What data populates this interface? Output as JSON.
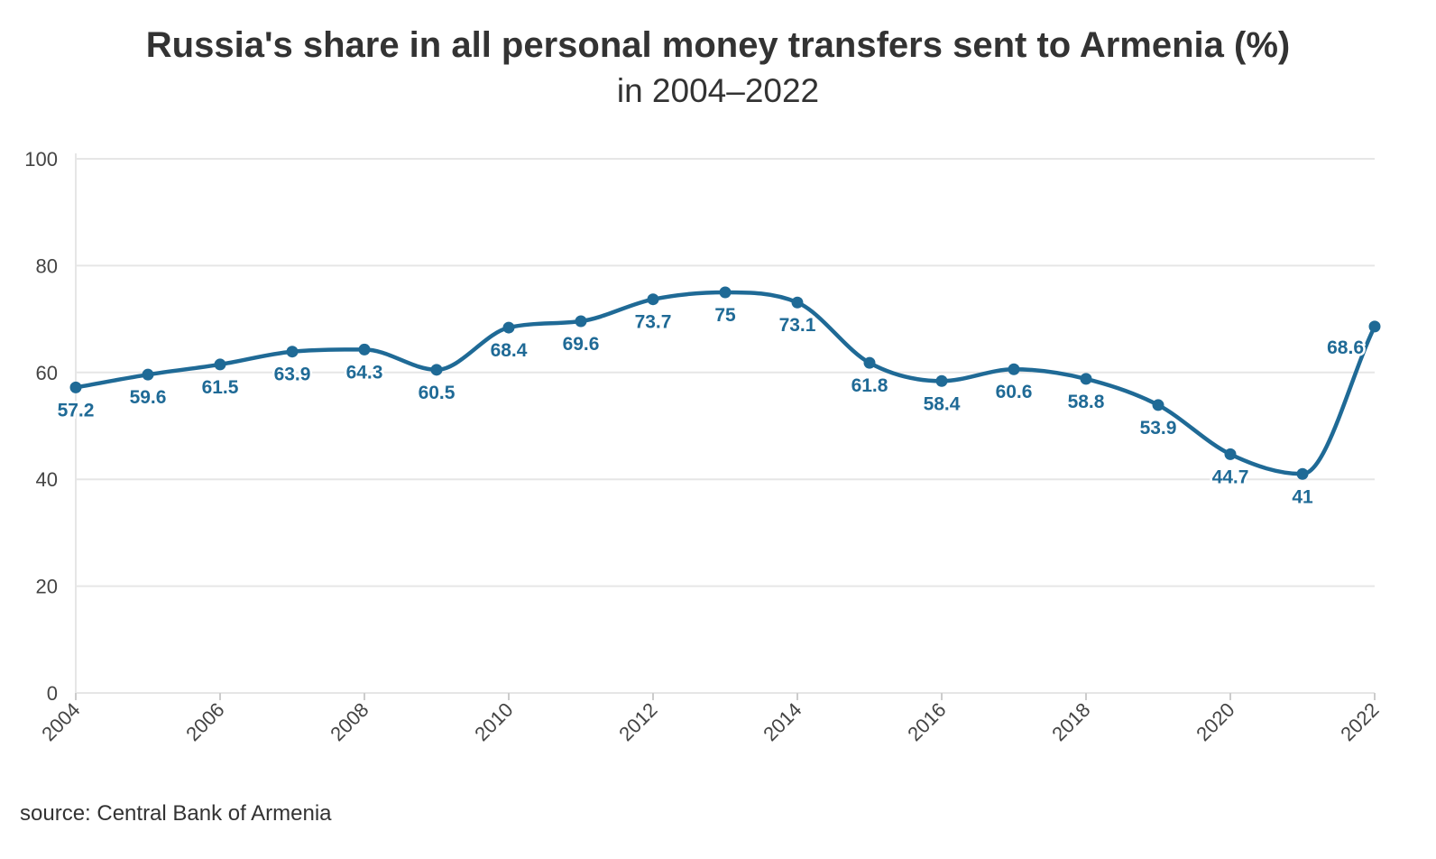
{
  "chart_data": {
    "type": "line",
    "title": "Russia's share in all personal money transfers sent to Armenia (%)",
    "subtitle": "in 2004–2022",
    "source": "source: Central Bank of Armenia",
    "x": [
      2004,
      2005,
      2006,
      2007,
      2008,
      2009,
      2010,
      2011,
      2012,
      2013,
      2014,
      2015,
      2016,
      2017,
      2018,
      2019,
      2020,
      2021,
      2022
    ],
    "x_tick_labels": [
      "2004",
      "2006",
      "2008",
      "2010",
      "2012",
      "2014",
      "2016",
      "2018",
      "2020",
      "2022"
    ],
    "y_tick_labels": [
      "0",
      "20",
      "40",
      "60",
      "80",
      "100"
    ],
    "values": [
      57.2,
      59.6,
      61.5,
      63.9,
      64.3,
      60.5,
      68.4,
      69.6,
      73.7,
      75,
      73.1,
      61.8,
      58.4,
      60.6,
      58.8,
      53.9,
      44.7,
      41,
      68.6
    ],
    "data_labels": [
      "57.2",
      "59.6",
      "61.5",
      "63.9",
      "64.3",
      "60.5",
      "68.4",
      "69.6",
      "73.7",
      "75",
      "73.1",
      "61.8",
      "58.4",
      "60.6",
      "58.8",
      "53.9",
      "44.7",
      "41",
      "68.6"
    ],
    "xlim": [
      2004,
      2022
    ],
    "ylim": [
      0,
      100
    ],
    "grid": true,
    "legend": "none",
    "colors": {
      "line": "#1f6a96",
      "grid": "#e6e6e6",
      "text": "#333333"
    }
  }
}
